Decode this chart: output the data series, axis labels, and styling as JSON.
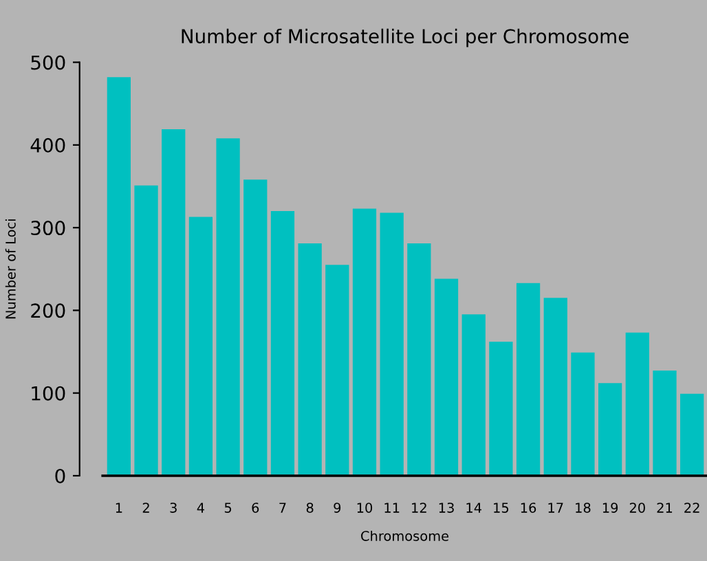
{
  "chart_data": {
    "type": "bar",
    "title": "Number of Microsatellite Loci per Chromosome",
    "xlabel": "Chromosome",
    "ylabel": "Number of Loci",
    "categories": [
      "1",
      "2",
      "3",
      "4",
      "5",
      "6",
      "7",
      "8",
      "9",
      "10",
      "11",
      "12",
      "13",
      "14",
      "15",
      "16",
      "17",
      "18",
      "19",
      "20",
      "21",
      "22"
    ],
    "values": [
      483,
      352,
      420,
      314,
      409,
      359,
      321,
      282,
      256,
      324,
      319,
      282,
      239,
      196,
      163,
      234,
      216,
      150,
      113,
      174,
      128,
      100
    ],
    "color": "#00c0c0",
    "ylim": [
      0,
      500
    ],
    "yticks": [
      0,
      100,
      200,
      300,
      400,
      500
    ],
    "grid": false,
    "legend": false
  }
}
